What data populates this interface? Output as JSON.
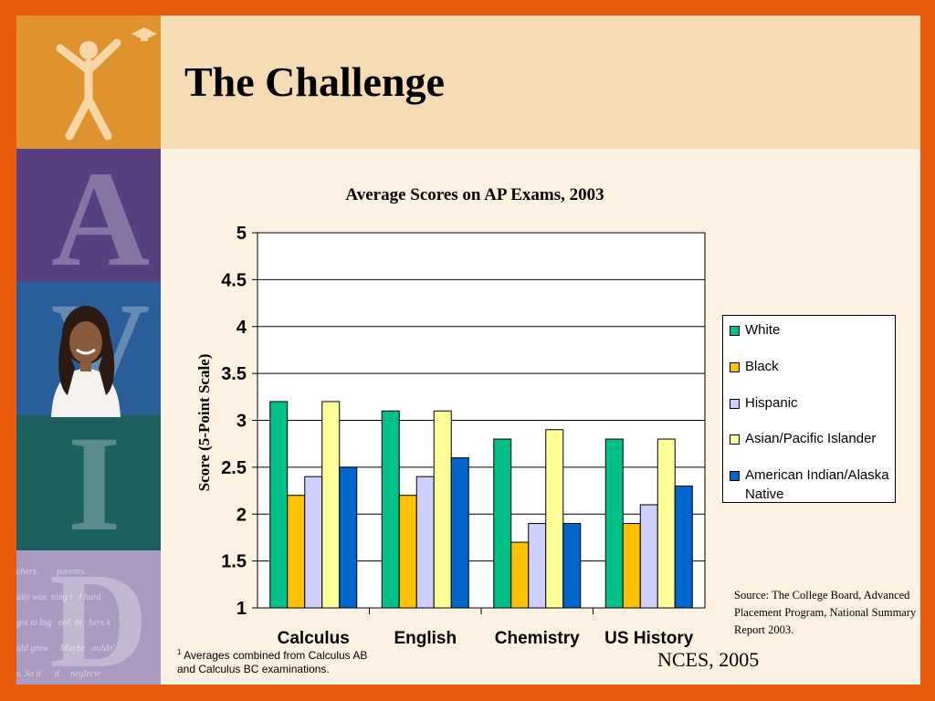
{
  "slide": {
    "title": "The Challenge",
    "source": "Source: The College Board, Advanced Placement Program, National Summary Report 2003.",
    "footnote_mark": "1",
    "footnote": "Averages combined from Calculus AB and Calculus BC examinations.",
    "credit": "NCES, 2005",
    "sidebar_letters": [
      "A",
      "V",
      "I",
      "D"
    ],
    "sidebar_script": "chers.        parents.\nulty was  ning t   l hard\ngot to big   ool, bi   hers k\nuld grow     Maybe   ouldn'\ns. So it'     d     neglecte"
  },
  "chart_data": {
    "type": "bar",
    "title": "Average Scores on AP Exams, 2003",
    "ylabel": "Score (5-Point Scale)",
    "xlabel": "",
    "ylim": [
      1,
      5
    ],
    "yticks": [
      1,
      1.5,
      2,
      2.5,
      3,
      3.5,
      4,
      4.5,
      5
    ],
    "grid": true,
    "legend_position": "right",
    "categories": [
      "Calculus",
      "English",
      "Chemistry",
      "US History"
    ],
    "series": [
      {
        "name": "White",
        "color": "#00c08a",
        "values": [
          3.2,
          3.1,
          2.8,
          2.8
        ]
      },
      {
        "name": "Black",
        "color": "#ffc000",
        "values": [
          2.2,
          2.2,
          1.7,
          1.9
        ]
      },
      {
        "name": "Hispanic",
        "color": "#cccfff",
        "values": [
          2.4,
          2.4,
          1.9,
          2.1
        ]
      },
      {
        "name": "Asian/Pacific Islander",
        "color": "#ffff99",
        "values": [
          3.2,
          3.1,
          2.9,
          2.8
        ]
      },
      {
        "name": "American Indian/Alaska Native",
        "color": "#0066cc",
        "values": [
          2.5,
          2.6,
          1.9,
          2.3
        ]
      }
    ]
  },
  "colors": {
    "frame": "#e85a0c",
    "background": "#fdf1e2",
    "header": "#f5dcb4"
  },
  "icons": [
    "avid-figure-logo-icon",
    "student-photo"
  ]
}
